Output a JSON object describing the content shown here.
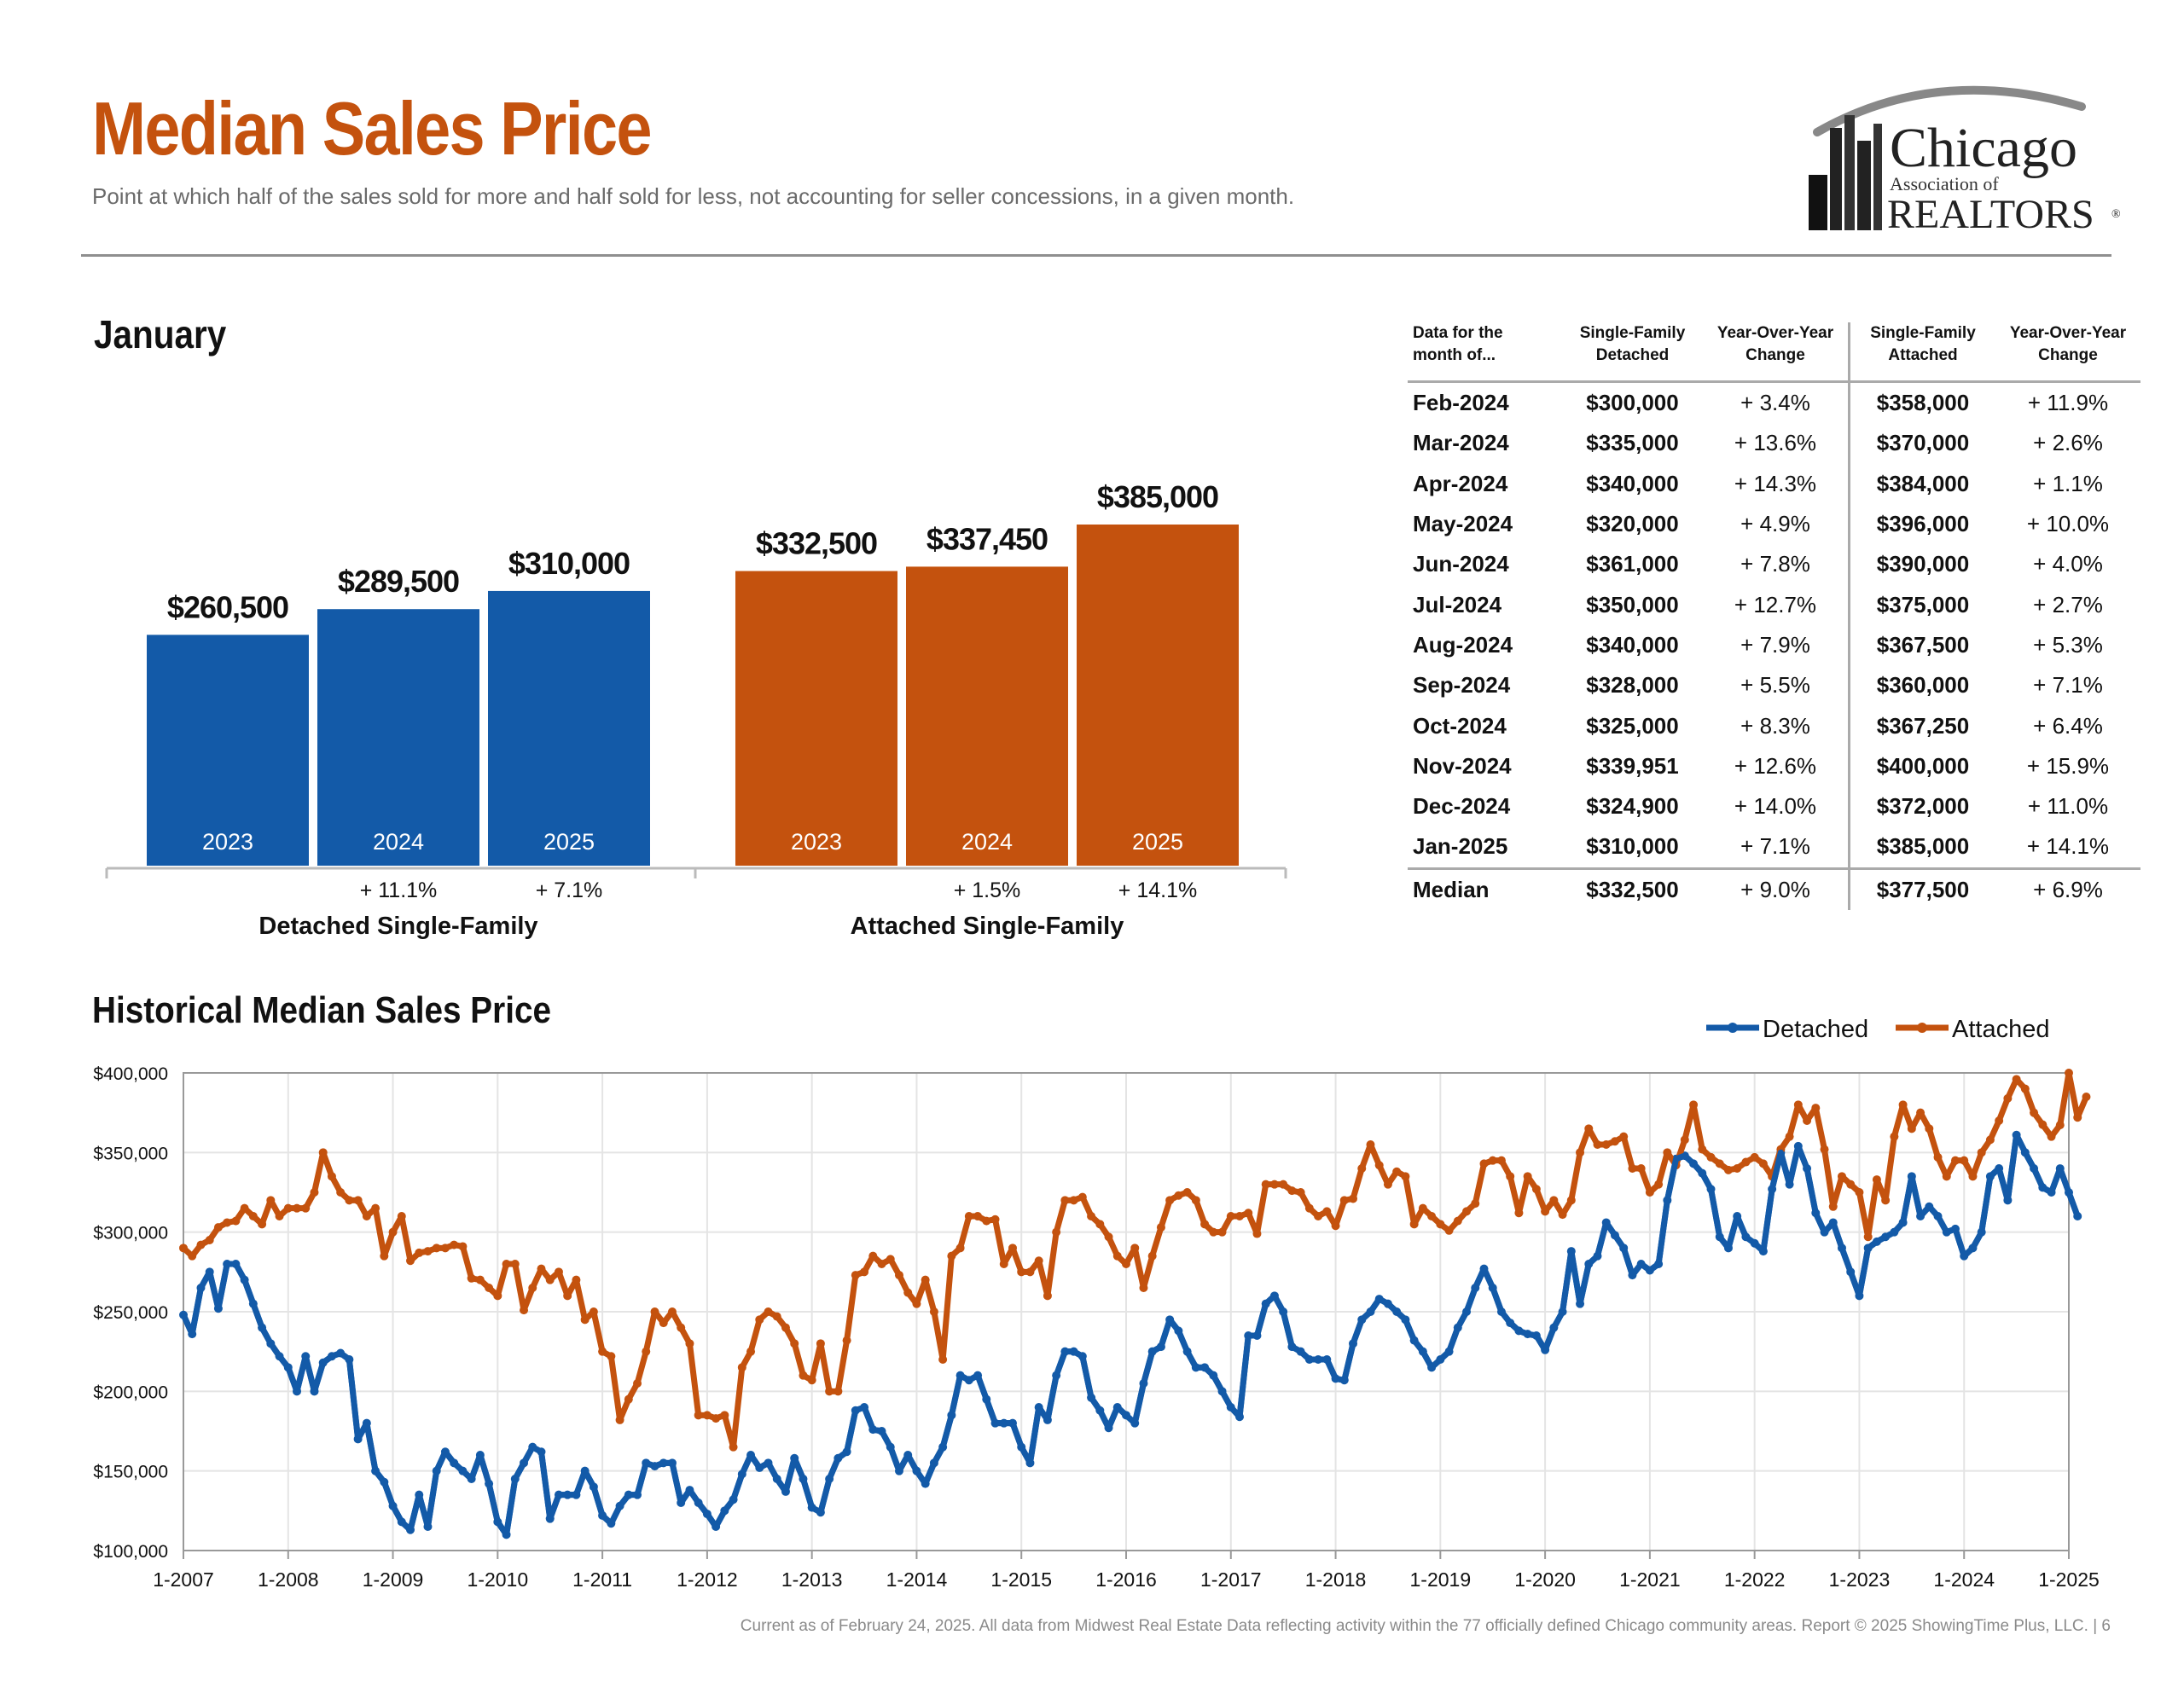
{
  "header": {
    "title": "Median Sales Price",
    "subtitle": "Point at which half of the sales sold for more and half sold for less, not accounting for seller concessions, in a given month.",
    "logo_text": {
      "line1": "Chicago",
      "line2": "Association of",
      "line3": "REALTORS",
      "mark": "®"
    }
  },
  "colors": {
    "detached": "#135aa8",
    "attached": "#c4520e",
    "title": "#c4520e"
  },
  "january": {
    "section_title": "January"
  },
  "table": {
    "headers": [
      [
        "Data for the",
        "month of..."
      ],
      [
        "Single-Family",
        "Detached"
      ],
      [
        "Year-Over-Year",
        "Change"
      ],
      [
        "Single-Family",
        "Attached"
      ],
      [
        "Year-Over-Year",
        "Change"
      ]
    ],
    "rows": [
      [
        "Feb-2024",
        "$300,000",
        "+ 3.4%",
        "$358,000",
        "+ 11.9%"
      ],
      [
        "Mar-2024",
        "$335,000",
        "+ 13.6%",
        "$370,000",
        "+ 2.6%"
      ],
      [
        "Apr-2024",
        "$340,000",
        "+ 14.3%",
        "$384,000",
        "+ 1.1%"
      ],
      [
        "May-2024",
        "$320,000",
        "+ 4.9%",
        "$396,000",
        "+ 10.0%"
      ],
      [
        "Jun-2024",
        "$361,000",
        "+ 7.8%",
        "$390,000",
        "+ 4.0%"
      ],
      [
        "Jul-2024",
        "$350,000",
        "+ 12.7%",
        "$375,000",
        "+ 2.7%"
      ],
      [
        "Aug-2024",
        "$340,000",
        "+ 7.9%",
        "$367,500",
        "+ 5.3%"
      ],
      [
        "Sep-2024",
        "$328,000",
        "+ 5.5%",
        "$360,000",
        "+ 7.1%"
      ],
      [
        "Oct-2024",
        "$325,000",
        "+ 8.3%",
        "$367,250",
        "+ 6.4%"
      ],
      [
        "Nov-2024",
        "$339,951",
        "+ 12.6%",
        "$400,000",
        "+ 15.9%"
      ],
      [
        "Dec-2024",
        "$324,900",
        "+ 14.0%",
        "$372,000",
        "+ 11.0%"
      ],
      [
        "Jan-2025",
        "$310,000",
        "+ 7.1%",
        "$385,000",
        "+ 14.1%"
      ]
    ],
    "median_row": [
      "Median",
      "$332,500",
      "+ 9.0%",
      "$377,500",
      "+ 6.9%"
    ]
  },
  "historical": {
    "section_title": "Historical Median Sales Price"
  },
  "footer": "Current as of February 24, 2025.  All data from Midwest Real Estate Data reflecting activity within the 77 officially defined Chicago community areas. Report © 2025 ShowingTime Plus, LLC.  |  6",
  "chart_data": [
    {
      "type": "bar",
      "title": "January",
      "groups": [
        {
          "name": "Detached Single-Family",
          "color": "#135aa8",
          "categories": [
            "2023",
            "2024",
            "2025"
          ],
          "values": [
            260500,
            289500,
            310000
          ],
          "value_labels": [
            "$260,500",
            "$289,500",
            "$310,000"
          ],
          "changes": [
            "",
            "+ 11.1%",
            "+ 7.1%"
          ]
        },
        {
          "name": "Attached Single-Family",
          "color": "#c4520e",
          "categories": [
            "2023",
            "2024",
            "2025"
          ],
          "values": [
            332500,
            337450,
            385000
          ],
          "value_labels": [
            "$332,500",
            "$337,450",
            "$385,000"
          ],
          "changes": [
            "",
            "+ 1.5%",
            "+ 14.1%"
          ]
        }
      ],
      "ylim": [
        0,
        385000
      ]
    },
    {
      "type": "line",
      "title": "Historical Median Sales Price",
      "x_start": "1-2007",
      "x_end": "1-2025",
      "frequency": "monthly",
      "x_ticks": [
        "1-2007",
        "1-2008",
        "1-2009",
        "1-2010",
        "1-2011",
        "1-2012",
        "1-2013",
        "1-2014",
        "1-2015",
        "1-2016",
        "1-2017",
        "1-2018",
        "1-2019",
        "1-2020",
        "1-2021",
        "1-2022",
        "1-2023",
        "1-2024",
        "1-2025"
      ],
      "y_ticks": [
        100000,
        150000,
        200000,
        250000,
        300000,
        350000,
        400000
      ],
      "y_tick_labels": [
        "$100,000",
        "$150,000",
        "$200,000",
        "$250,000",
        "$300,000",
        "$350,000",
        "$400,000"
      ],
      "ylim": [
        100000,
        400000
      ],
      "grid": true,
      "legend": "top-right",
      "series": [
        {
          "name": "Detached",
          "color": "#135aa8",
          "values": [
            248000,
            236000,
            265000,
            275000,
            252000,
            280000,
            280000,
            270000,
            255000,
            240000,
            230000,
            222000,
            215000,
            200000,
            222000,
            200000,
            218000,
            222000,
            224000,
            220000,
            170000,
            180000,
            150000,
            143000,
            128000,
            118000,
            113000,
            135000,
            115000,
            150000,
            162000,
            155000,
            150000,
            145000,
            160000,
            142000,
            118000,
            110000,
            145000,
            155000,
            165000,
            162000,
            120000,
            135000,
            135000,
            135000,
            150000,
            140000,
            122000,
            117000,
            128000,
            135000,
            135000,
            155000,
            153000,
            155000,
            155000,
            130000,
            138000,
            130000,
            123000,
            115000,
            125000,
            132000,
            148000,
            160000,
            152000,
            155000,
            145000,
            137000,
            158000,
            145000,
            127000,
            124000,
            145000,
            158000,
            162000,
            188000,
            190000,
            176000,
            175000,
            165000,
            150000,
            160000,
            150000,
            142000,
            155000,
            165000,
            185000,
            210000,
            207000,
            210000,
            195000,
            180000,
            180000,
            180000,
            165000,
            155000,
            190000,
            182000,
            210000,
            225000,
            225000,
            222000,
            196000,
            188000,
            177000,
            190000,
            185000,
            180000,
            205000,
            225000,
            228000,
            245000,
            238000,
            225000,
            215000,
            215000,
            210000,
            200000,
            190000,
            184000,
            235000,
            235000,
            255000,
            260000,
            250000,
            228000,
            225000,
            220000,
            220000,
            220000,
            208000,
            207000,
            230000,
            245000,
            250000,
            258000,
            255000,
            250000,
            245000,
            232000,
            225000,
            215000,
            220000,
            225000,
            240000,
            250000,
            265000,
            277000,
            265000,
            250000,
            243000,
            238000,
            236000,
            235000,
            226000,
            240000,
            250000,
            288000,
            255000,
            280000,
            285000,
            306000,
            298000,
            290000,
            273000,
            280000,
            276000,
            280000,
            320000,
            346000,
            348000,
            343000,
            337000,
            327000,
            297000,
            290000,
            310000,
            297000,
            293000,
            288000,
            327000,
            350000,
            330000,
            354000,
            340000,
            312000,
            300000,
            306000,
            290000,
            275000,
            260000,
            290000,
            294000,
            297000,
            300000,
            306000,
            335000,
            310000,
            316000,
            310000,
            300000,
            302000,
            285000,
            290000,
            300000,
            335000,
            340000,
            320000,
            361000,
            350000,
            340000,
            328000,
            325000,
            339951,
            324900,
            310000
          ]
        },
        {
          "name": "Attached",
          "color": "#c4520e",
          "values": [
            290000,
            285000,
            292000,
            295000,
            303000,
            306000,
            307000,
            315000,
            310000,
            305000,
            320000,
            310000,
            315000,
            315000,
            315000,
            325000,
            350000,
            335000,
            325000,
            320000,
            320000,
            310000,
            315000,
            285000,
            300000,
            310000,
            282000,
            287000,
            288000,
            290000,
            290000,
            292000,
            291000,
            271000,
            270000,
            265000,
            260000,
            280000,
            280000,
            251000,
            265000,
            277000,
            270000,
            275000,
            260000,
            270000,
            245000,
            250000,
            225000,
            222000,
            182000,
            195000,
            205000,
            225000,
            250000,
            243000,
            250000,
            240000,
            230000,
            185000,
            185000,
            183000,
            185000,
            165000,
            215000,
            225000,
            245000,
            250000,
            247000,
            240000,
            230000,
            210000,
            207000,
            230000,
            200000,
            200000,
            232000,
            273000,
            275000,
            285000,
            280000,
            283000,
            273000,
            262000,
            255000,
            270000,
            250000,
            220000,
            285000,
            290000,
            310000,
            310000,
            307000,
            308000,
            280000,
            290000,
            275000,
            275000,
            282000,
            260000,
            300000,
            320000,
            320000,
            322000,
            310000,
            305000,
            297000,
            285000,
            280000,
            290000,
            265000,
            285000,
            303000,
            320000,
            323000,
            325000,
            320000,
            305000,
            300000,
            300000,
            310000,
            310000,
            312000,
            299000,
            330000,
            330000,
            330000,
            326000,
            325000,
            315000,
            310000,
            313000,
            304000,
            320000,
            321000,
            340000,
            355000,
            342000,
            330000,
            338000,
            335000,
            305000,
            315000,
            310000,
            305000,
            301000,
            307000,
            313000,
            318000,
            343000,
            345000,
            345000,
            335000,
            312000,
            335000,
            327000,
            313000,
            320000,
            311000,
            320000,
            350000,
            365000,
            355000,
            355000,
            357000,
            360000,
            340000,
            340000,
            325000,
            330000,
            350000,
            342000,
            358000,
            380000,
            352000,
            347000,
            343000,
            339000,
            340000,
            344000,
            347000,
            343000,
            335000,
            352000,
            360000,
            380000,
            370000,
            378000,
            352000,
            316000,
            335000,
            330000,
            325000,
            297000,
            333000,
            320000,
            360000,
            380000,
            365000,
            375000,
            365000,
            347000,
            335000,
            345000,
            345000,
            335000,
            350000,
            358000,
            370000,
            384000,
            396000,
            390000,
            375000,
            367500,
            360000,
            367250,
            400000,
            372000,
            385000
          ]
        }
      ]
    }
  ]
}
